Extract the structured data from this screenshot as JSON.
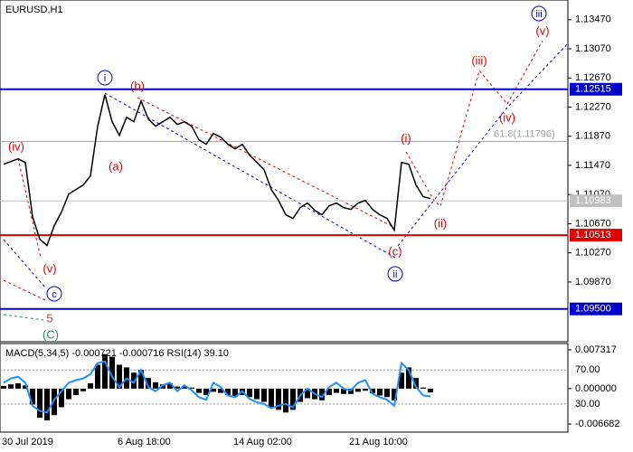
{
  "chart_data": [
    {
      "type": "line",
      "title": "EURUSD,H1",
      "categories": [
        "30 Jul 2019",
        null,
        null,
        null,
        null,
        null,
        null,
        null,
        null,
        null,
        null,
        null,
        null,
        null,
        null,
        null,
        "6 Aug 18:00",
        null,
        null,
        null,
        null,
        null,
        null,
        null,
        null,
        null,
        null,
        null,
        null,
        null,
        null,
        null,
        "14 Aug 02:00",
        null,
        null,
        null,
        null,
        null,
        null,
        null,
        null,
        null,
        null,
        null,
        null,
        null,
        null,
        null,
        "21 Aug 10:00",
        null,
        null,
        null,
        null,
        null,
        null,
        null,
        null,
        null,
        null,
        null
      ],
      "series": [
        {
          "color": "#000000",
          "values": [
            1.11486,
            1.11523,
            1.1156,
            1.11511,
            1.10767,
            1.10457,
            1.1037,
            1.10643,
            1.10829,
            1.11077,
            1.11139,
            1.11201,
            1.11325,
            1.12007,
            1.12441,
            1.12069,
            1.11883,
            1.12131,
            1.12069,
            1.12354,
            1.12106,
            1.12007,
            1.12069,
            1.12131,
            1.12032,
            1.12069,
            1.12007,
            1.11821,
            1.11759,
            1.11908,
            1.11858,
            1.11759,
            1.11697,
            1.11759,
            1.1161,
            1.11511,
            1.11412,
            1.11139,
            1.1099,
            1.10792,
            1.10742,
            1.10891,
            1.10953,
            1.10854,
            1.10792,
            1.10916,
            1.10953,
            1.10891,
            1.10866,
            1.10953,
            1.1099,
            1.10866,
            1.10792,
            1.10742,
            1.10581,
            1.11511,
            1.11486,
            1.11201,
            1.1104,
            1.11015
          ]
        }
      ],
      "ylim": [
        1.0905,
        1.1374
      ],
      "yticks": [
        {
          "value": 1.1347,
          "label": "1.13470"
        },
        {
          "value": 1.1307,
          "label": "1.13070"
        },
        {
          "value": 1.1267,
          "label": "1.12670"
        },
        {
          "value": 1.1227,
          "label": "1.12270"
        },
        {
          "value": 1.1187,
          "label": "1.11870"
        },
        {
          "value": 1.1147,
          "label": "1.11470"
        },
        {
          "value": 1.1107,
          "label": "1.11070"
        },
        {
          "value": 1.1067,
          "label": "1.10670"
        },
        {
          "value": 1.1027,
          "label": "1.10270"
        },
        {
          "value": 1.0987,
          "label": "1.09870"
        }
      ],
      "levels": [
        {
          "value": 1.12515,
          "label": "1.12515",
          "color": "#0000cd"
        },
        {
          "value": 1.11796,
          "text": "61.8(1.11796)",
          "color": "#a0a0a0"
        },
        {
          "value": 1.10983,
          "label": "1.10983",
          "color": "#c0c0c0"
        },
        {
          "value": 1.10513,
          "label": "1.10513",
          "color": "#e00000"
        },
        {
          "value": 1.095,
          "label": "1.09500",
          "color": "#0000cd"
        }
      ],
      "annotations": [
        {
          "text": "(iv)",
          "color": "#e00000"
        },
        {
          "text": "(v)",
          "color": "#e00000"
        },
        {
          "text": "c",
          "color": "#0000cd",
          "circled": true
        },
        {
          "text": "5",
          "color": "#c04040"
        },
        {
          "text": "(C)",
          "color": "#2e8b57"
        },
        {
          "text": "i",
          "color": "#0000cd",
          "circled": true
        },
        {
          "text": "(b)",
          "color": "#e00000"
        },
        {
          "text": "(a)",
          "color": "#e00000"
        },
        {
          "text": "(c)",
          "color": "#e00000"
        },
        {
          "text": "ii",
          "color": "#0000cd",
          "circled": true
        },
        {
          "text": "(i)",
          "color": "#e00000"
        },
        {
          "text": "(ii)",
          "color": "#e00000"
        },
        {
          "text": "(iii)",
          "color": "#e00000"
        },
        {
          "text": "(iv)",
          "color": "#e00000"
        },
        {
          "text": "(v)",
          "color": "#e00000"
        },
        {
          "text": "iii",
          "color": "#0000cd",
          "circled": true
        }
      ]
    },
    {
      "type": "bar",
      "title": "MACD(5,34,5) -0.000721 -0.000716 RSI(14) 39.10",
      "series": [
        {
          "color": "#000000",
          "values": [
            0.0005,
            0.0008,
            0.001,
            0.0006,
            -0.003,
            -0.0055,
            -0.006,
            -0.005,
            -0.0035,
            -0.002,
            -0.0012,
            -0.0005,
            0.001,
            0.0045,
            0.0065,
            0.006,
            0.0045,
            0.004,
            0.003,
            0.0035,
            0.002,
            0.0012,
            0.0008,
            0.001,
            0.0004,
            0.0005,
            0.0002,
            -0.0008,
            -0.0012,
            -0.0006,
            -0.0008,
            -0.0012,
            -0.0015,
            -0.0012,
            -0.0016,
            -0.002,
            -0.0025,
            -0.0035,
            -0.004,
            -0.0045,
            -0.004,
            -0.0025,
            -0.0018,
            -0.002,
            -0.0022,
            -0.0012,
            -0.0008,
            -0.001,
            -0.001,
            -0.0006,
            -0.0004,
            -0.0009,
            -0.0013,
            -0.0016,
            -0.0022,
            0.003,
            0.004,
            0.002,
            0.0002,
            -0.000721
          ]
        },
        {
          "type": "line",
          "axis": "y2",
          "color": "#1e90ff",
          "values": [
            55,
            60,
            62,
            55,
            28,
            22,
            20,
            35,
            45,
            55,
            58,
            60,
            65,
            78,
            80,
            62,
            50,
            60,
            55,
            70,
            50,
            45,
            52,
            55,
            45,
            52,
            46,
            38,
            35,
            55,
            50,
            40,
            38,
            45,
            36,
            32,
            30,
            25,
            28,
            30,
            26,
            40,
            48,
            42,
            38,
            50,
            55,
            48,
            46,
            55,
            58,
            42,
            38,
            35,
            28,
            78,
            70,
            50,
            40,
            39.1
          ]
        }
      ],
      "ylim": [
        -0.0082,
        0.0085
      ],
      "yticks": [
        0.007317,
        {
          "value": 0,
          "label": "0.000000"
        },
        -0.006682
      ],
      "y2lim": [
        -3,
        101
      ],
      "y2ticks": [
        {
          "value": 70,
          "label": "70.00"
        },
        {
          "value": 30,
          "label": "30.00"
        }
      ]
    }
  ]
}
